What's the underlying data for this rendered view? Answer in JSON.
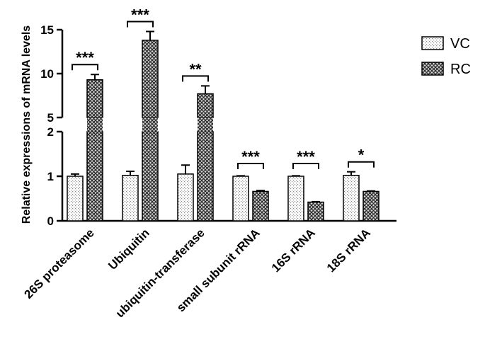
{
  "chart_data": {
    "type": "bar",
    "title": "",
    "xlabel": "",
    "ylabel": "Relative expressions of mRNA levels",
    "y_axis": "broken",
    "ylim_lower": [
      0,
      2
    ],
    "ylim_upper": [
      5,
      15
    ],
    "yticks_lower": [
      "0",
      "1",
      "2"
    ],
    "yticks_upper": [
      "5",
      "10",
      "15"
    ],
    "categories": [
      "26S proteasome",
      "Ubiquitin",
      "ubiquitin-transferase",
      "small subunit rRNA",
      "16S rRNA",
      "18S rRNA"
    ],
    "series": [
      {
        "name": "VC",
        "values": [
          1.0,
          1.02,
          1.05,
          1.0,
          1.0,
          1.02
        ],
        "errors": [
          0.05,
          0.09,
          0.2,
          0.01,
          0.01,
          0.08
        ],
        "pattern": "dots"
      },
      {
        "name": "RC",
        "values": [
          9.3,
          13.8,
          7.7,
          0.66,
          0.42,
          0.66
        ],
        "errors": [
          0.6,
          1.0,
          0.9,
          0.02,
          0.01,
          0.01
        ],
        "pattern": "crosshatch"
      }
    ],
    "significance": [
      "***",
      "***",
      "**",
      "***",
      "***",
      "*"
    ],
    "legend": {
      "position": "top-right",
      "entries": [
        "VC",
        "RC"
      ]
    },
    "grid": false
  }
}
